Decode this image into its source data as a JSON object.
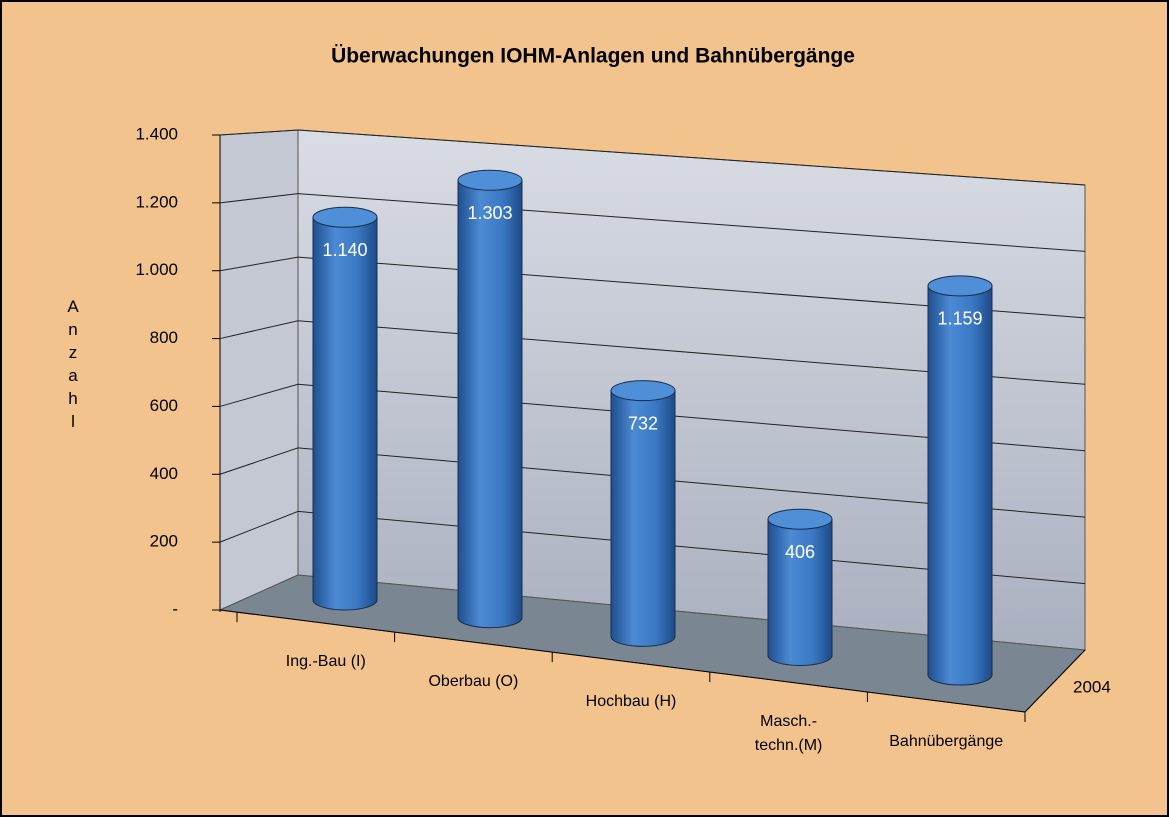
{
  "chart_data": {
    "type": "bar3d",
    "title": "Überwachungen IOHM-Anlagen und Bahnübergänge",
    "y_label": "Anzahl",
    "categories": [
      "Ing.-Bau (I)",
      "Oberbau (O)",
      "Hochbau (H)",
      "Masch.-\ntechn.(M)",
      "Bahnübergänge"
    ],
    "series": [
      {
        "name": "2004",
        "color": "#3a78c4",
        "values": [
          1140,
          1303,
          732,
          406,
          1159
        ],
        "value_labels": [
          "1.140",
          "1.303",
          "732",
          "406",
          "1.159"
        ]
      }
    ],
    "ylim": [
      0,
      1400
    ],
    "yticks": [
      {
        "value": 0,
        "label": "-"
      },
      200,
      400,
      600,
      800,
      {
        "value": 1000,
        "label": "1.000"
      },
      {
        "value": 1200,
        "label": "1.200"
      },
      {
        "value": 1400,
        "label": "1.400"
      }
    ],
    "grid": true
  }
}
